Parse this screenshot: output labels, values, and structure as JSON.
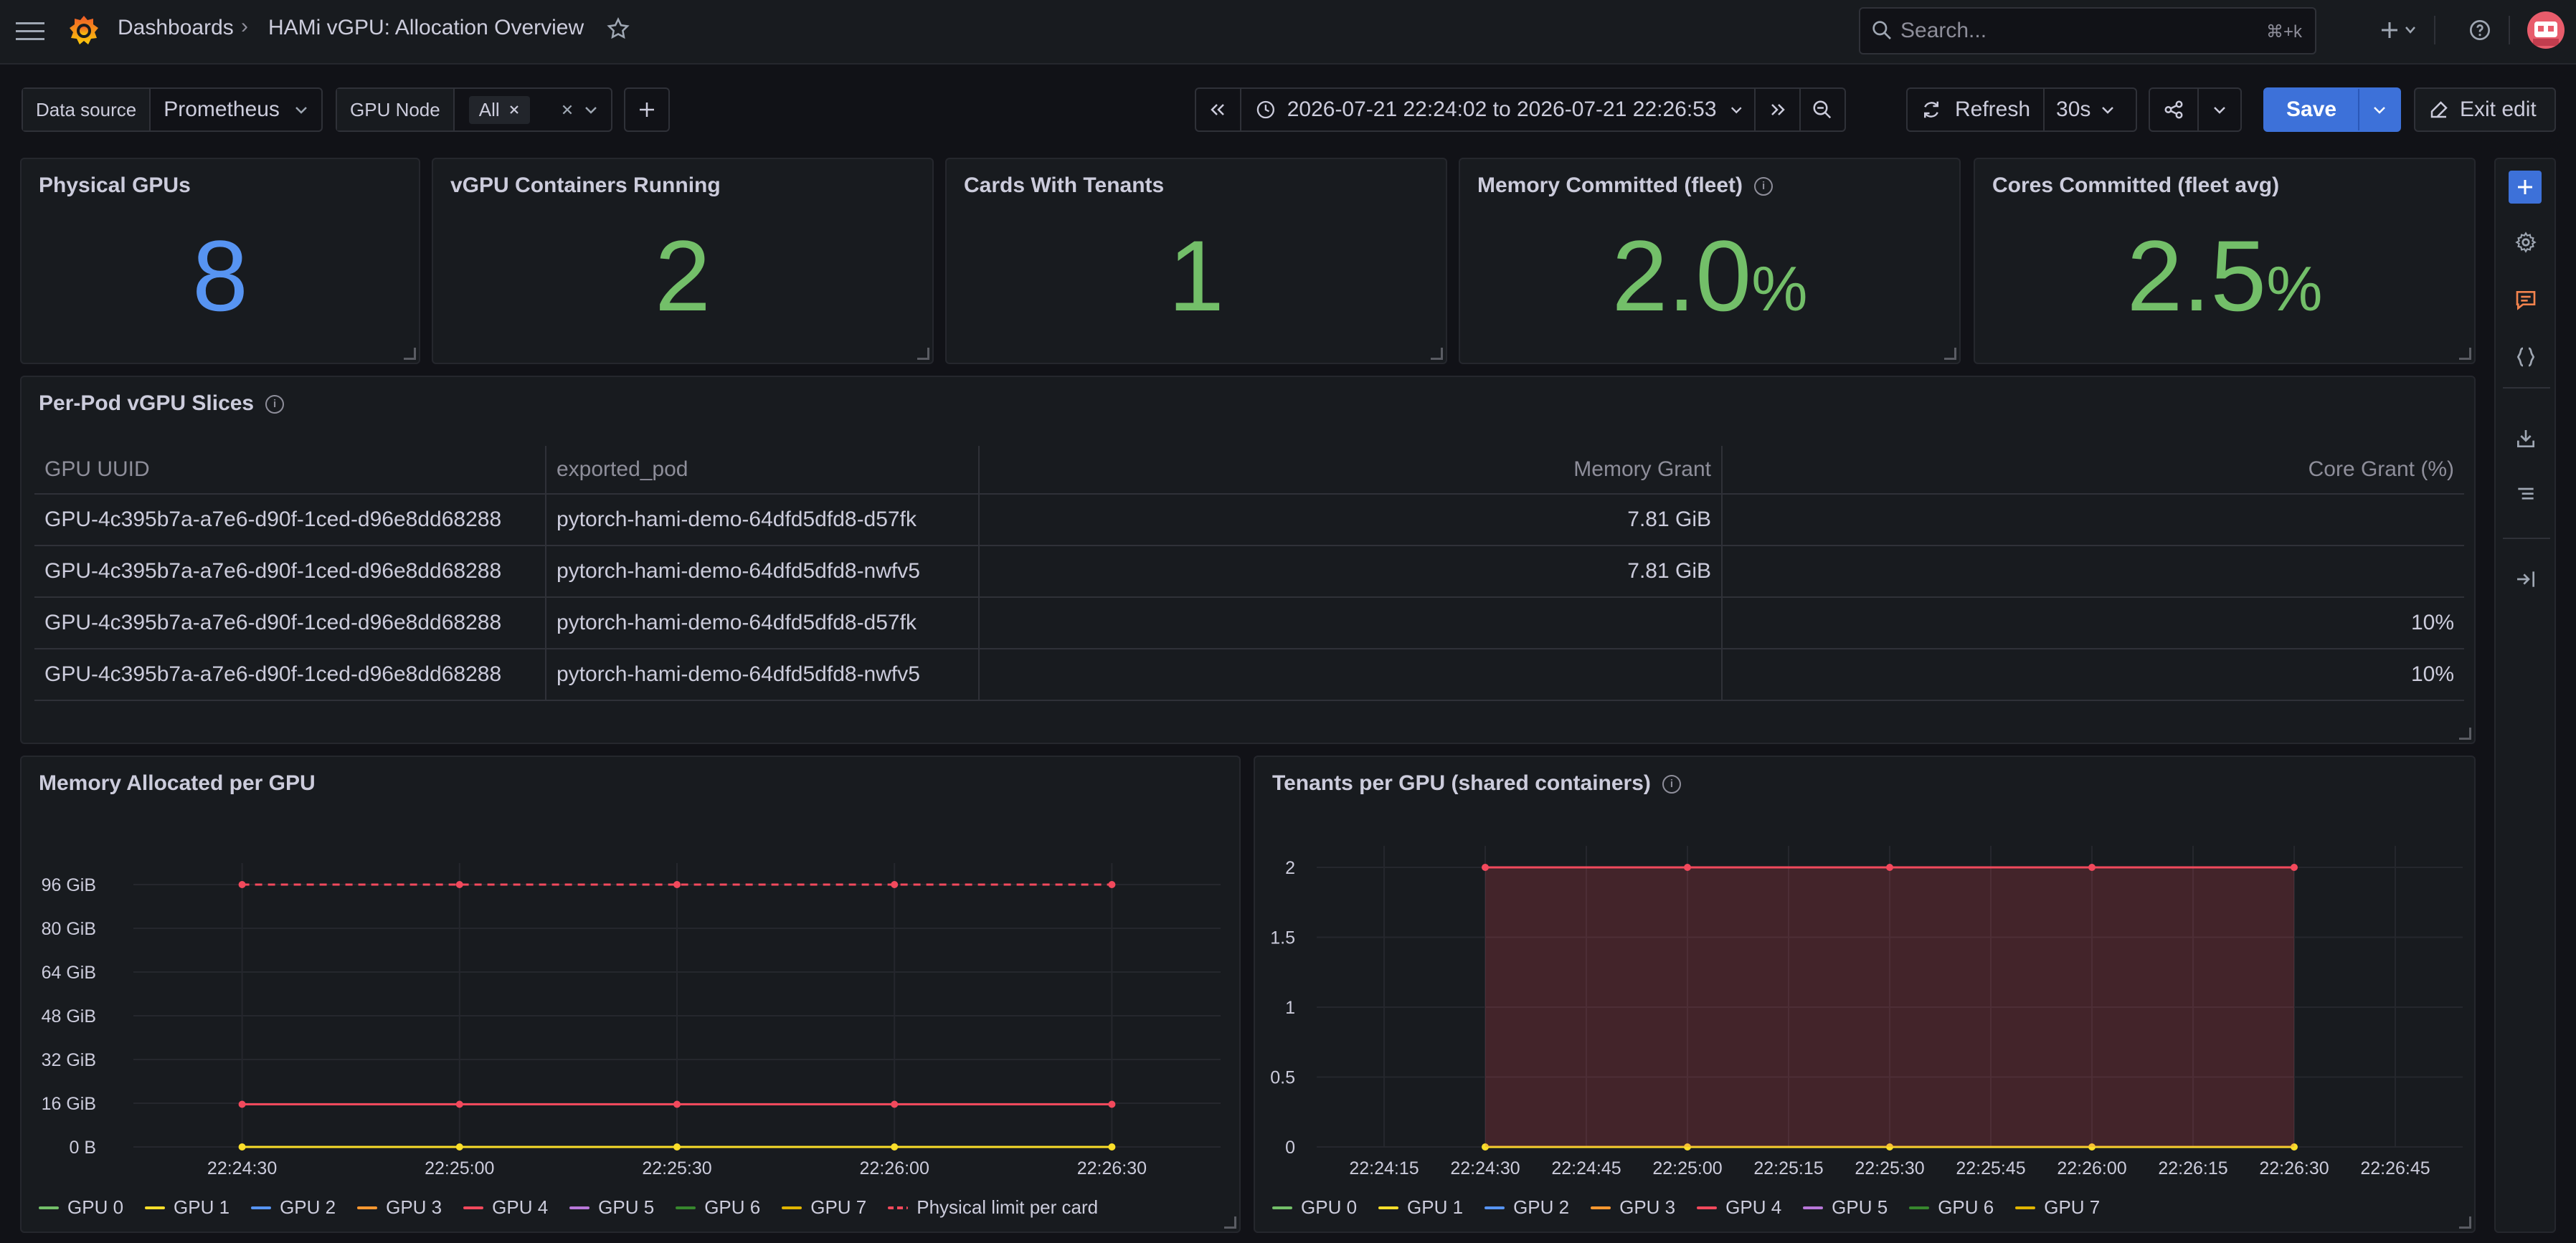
{
  "topbar": {
    "breadcrumb_root": "Dashboards",
    "breadcrumb_sep": "›",
    "dashboard_title": "HAMi vGPU: Allocation Overview",
    "search_placeholder": "Search...",
    "search_shortcut": "⌘+k"
  },
  "controls": {
    "datasource_label": "Data source",
    "datasource_value": "Prometheus",
    "gpunode_label": "GPU Node",
    "gpunode_value": "All",
    "time_range": "2026-07-21 22:24:02 to 2026-07-21 22:26:53",
    "refresh_label": "Refresh",
    "refresh_interval": "30s",
    "save_label": "Save",
    "exit_edit_label": "Exit edit"
  },
  "stats": [
    {
      "title": "Physical GPUs",
      "value": "8",
      "unit": "",
      "color": "#5794f2"
    },
    {
      "title": "vGPU Containers Running",
      "value": "2",
      "unit": "",
      "color": "#73bf69"
    },
    {
      "title": "Cards With Tenants",
      "value": "1",
      "unit": "",
      "color": "#73bf69"
    },
    {
      "title": "Memory Committed (fleet)",
      "value": "2.0",
      "unit": "%",
      "color": "#73bf69"
    },
    {
      "title": "Cores Committed (fleet avg)",
      "value": "2.5",
      "unit": "%",
      "color": "#73bf69"
    }
  ],
  "table": {
    "title": "Per-Pod vGPU Slices",
    "columns": [
      "GPU UUID",
      "exported_pod",
      "Memory Grant",
      "Core Grant (%)"
    ],
    "rows": [
      [
        "GPU-4c395b7a-a7e6-d90f-1ced-d96e8dd68288",
        "pytorch-hami-demo-64dfd5dfd8-d57fk",
        "7.81 GiB",
        ""
      ],
      [
        "GPU-4c395b7a-a7e6-d90f-1ced-d96e8dd68288",
        "pytorch-hami-demo-64dfd5dfd8-nwfv5",
        "7.81 GiB",
        ""
      ],
      [
        "GPU-4c395b7a-a7e6-d90f-1ced-d96e8dd68288",
        "pytorch-hami-demo-64dfd5dfd8-d57fk",
        "",
        "10%"
      ],
      [
        "GPU-4c395b7a-a7e6-d90f-1ced-d96e8dd68288",
        "pytorch-hami-demo-64dfd5dfd8-nwfv5",
        "",
        "10%"
      ]
    ]
  },
  "chart_data": [
    {
      "type": "line",
      "title": "Memory Allocated per GPU",
      "y_ticks": [
        "0 B",
        "16 GiB",
        "32 GiB",
        "48 GiB",
        "64 GiB",
        "80 GiB",
        "96 GiB"
      ],
      "ylim": [
        0,
        96
      ],
      "x_ticks": [
        "22:24:30",
        "22:25:00",
        "22:25:30",
        "22:26:00",
        "22:26:30"
      ],
      "x": [
        "22:24:30",
        "22:25:00",
        "22:25:30",
        "22:26:00",
        "22:26:30"
      ],
      "series": [
        {
          "name": "GPU 0",
          "color": "#73bf69",
          "values": [
            0,
            0,
            0,
            0,
            0
          ],
          "hidden": true
        },
        {
          "name": "GPU 1",
          "color": "#fade2a",
          "values": [
            0,
            0,
            0,
            0,
            0
          ]
        },
        {
          "name": "GPU 2",
          "color": "#5794f2",
          "values": [
            0,
            0,
            0,
            0,
            0
          ],
          "hidden": true
        },
        {
          "name": "GPU 3",
          "color": "#ff9830",
          "values": [
            0,
            0,
            0,
            0,
            0
          ],
          "hidden": true
        },
        {
          "name": "GPU 4",
          "color": "#f2495c",
          "values": [
            15.6,
            15.6,
            15.6,
            15.6,
            15.6
          ]
        },
        {
          "name": "GPU 5",
          "color": "#b877d9",
          "values": [
            0,
            0,
            0,
            0,
            0
          ],
          "hidden": true
        },
        {
          "name": "GPU 6",
          "color": "#37872d",
          "values": [
            0,
            0,
            0,
            0,
            0
          ],
          "hidden": true
        },
        {
          "name": "GPU 7",
          "color": "#e0b400",
          "values": [
            0,
            0,
            0,
            0,
            0
          ],
          "hidden": true
        },
        {
          "name": "Physical limit per card",
          "color": "#f2495c",
          "dashed": true,
          "values": [
            96,
            96,
            96,
            96,
            96
          ]
        }
      ]
    },
    {
      "type": "area",
      "title": "Tenants per GPU (shared containers)",
      "y_ticks": [
        "0",
        "0.5",
        "1",
        "1.5",
        "2"
      ],
      "ylim": [
        0,
        2
      ],
      "x_ticks": [
        "22:24:15",
        "22:24:30",
        "22:24:45",
        "22:25:00",
        "22:25:15",
        "22:25:30",
        "22:25:45",
        "22:26:00",
        "22:26:15",
        "22:26:30",
        "22:26:45"
      ],
      "x": [
        "22:24:30",
        "22:25:00",
        "22:25:30",
        "22:26:00",
        "22:26:30"
      ],
      "series": [
        {
          "name": "GPU 0",
          "color": "#73bf69",
          "values": [
            0,
            0,
            0,
            0,
            0
          ],
          "hidden": true
        },
        {
          "name": "GPU 1",
          "color": "#fade2a",
          "values": [
            0,
            0,
            0,
            0,
            0
          ]
        },
        {
          "name": "GPU 2",
          "color": "#5794f2",
          "values": [
            0,
            0,
            0,
            0,
            0
          ],
          "hidden": true
        },
        {
          "name": "GPU 3",
          "color": "#ff9830",
          "values": [
            0,
            0,
            0,
            0,
            0
          ],
          "hidden": true
        },
        {
          "name": "GPU 4",
          "color": "#f2495c",
          "values": [
            2,
            2,
            2,
            2,
            2
          ],
          "fill": true
        },
        {
          "name": "GPU 5",
          "color": "#b877d9",
          "values": [
            0,
            0,
            0,
            0,
            0
          ],
          "hidden": true
        },
        {
          "name": "GPU 6",
          "color": "#37872d",
          "values": [
            0,
            0,
            0,
            0,
            0
          ],
          "hidden": true
        },
        {
          "name": "GPU 7",
          "color": "#e0b400",
          "values": [
            0,
            0,
            0,
            0,
            0
          ],
          "hidden": true
        }
      ]
    }
  ]
}
